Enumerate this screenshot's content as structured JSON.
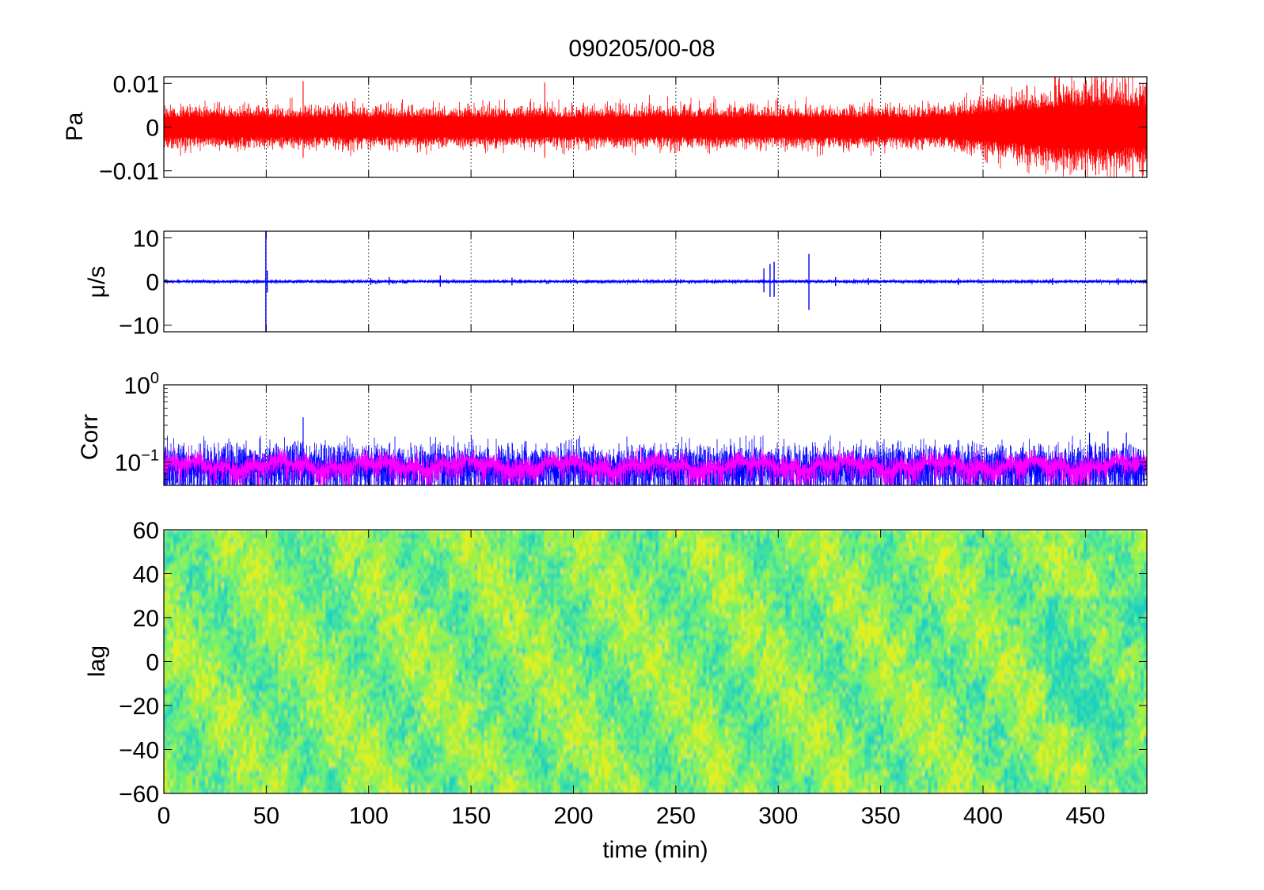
{
  "figure": {
    "title": "090205/00-08"
  },
  "chart_data": [
    {
      "type": "line",
      "panel": "pressure",
      "ylabel": "Pa",
      "xlim": [
        0,
        480
      ],
      "ylim": [
        -0.0115,
        0.0115
      ],
      "yticks": [
        -0.01,
        0,
        0.01
      ],
      "ytick_labels": [
        "−0.01",
        "0",
        "0.01"
      ],
      "xgrid_at": [
        50,
        100,
        150,
        200,
        250,
        300,
        350,
        400,
        450
      ],
      "color": "#ff0000",
      "baseline_amplitude": 0.004,
      "late_amplitude": 0.0085,
      "spikes": [
        {
          "x": 68,
          "min": -0.007,
          "max": 0.0105
        },
        {
          "x": 186,
          "min": -0.007,
          "max": 0.0102
        },
        {
          "x": 450,
          "min": -0.011,
          "max": 0.0115
        },
        {
          "x": 455,
          "min": -0.011,
          "max": 0.0115
        },
        {
          "x": 460,
          "min": -0.0095,
          "max": 0.0115
        }
      ]
    },
    {
      "type": "line",
      "panel": "velocity",
      "ylabel": "μ/s",
      "xlim": [
        0,
        480
      ],
      "ylim": [
        -11.5,
        11.5
      ],
      "yticks": [
        -10,
        0,
        10
      ],
      "ytick_labels": [
        "−10",
        "0",
        "10"
      ],
      "xgrid_at": [
        50,
        100,
        150,
        200,
        250,
        300,
        350,
        400,
        450
      ],
      "color": "#0000ff",
      "baseline_amplitude": 0.35,
      "spikes": [
        {
          "x": 49.8,
          "min": -11.5,
          "max": 11.5
        },
        {
          "x": 50.5,
          "min": -2.5,
          "max": 2.5
        },
        {
          "x": 101,
          "min": -0.8,
          "max": 0.8
        },
        {
          "x": 110,
          "min": -0.8,
          "max": 1.0
        },
        {
          "x": 135,
          "min": -1.2,
          "max": 1.4
        },
        {
          "x": 170,
          "min": -0.9,
          "max": 0.9
        },
        {
          "x": 293,
          "min": -2.5,
          "max": 3.0
        },
        {
          "x": 296,
          "min": -3.5,
          "max": 4.0
        },
        {
          "x": 298,
          "min": -3.5,
          "max": 4.5
        },
        {
          "x": 315,
          "min": -6.5,
          "max": 6.3
        },
        {
          "x": 328,
          "min": -1.0,
          "max": 1.0
        },
        {
          "x": 344,
          "min": -0.8,
          "max": 0.8
        },
        {
          "x": 388,
          "min": -0.8,
          "max": 0.8
        },
        {
          "x": 434,
          "min": -0.8,
          "max": 0.8
        },
        {
          "x": 466,
          "min": -0.8,
          "max": 0.8
        }
      ]
    },
    {
      "type": "line",
      "panel": "correlation",
      "ylabel": "Corr",
      "yscale": "log",
      "xlim": [
        0,
        480
      ],
      "ylim": [
        0.05,
        1
      ],
      "yticks": [
        0.1,
        1
      ],
      "ytick_labels": [
        {
          "base": "10",
          "exp": "−1"
        },
        {
          "base": "10",
          "exp": "0"
        }
      ],
      "xgrid_at": [
        50,
        100,
        150,
        200,
        250,
        300,
        350,
        400,
        450
      ],
      "series": [
        {
          "color": "#0000ff",
          "center": 0.085,
          "spread": 0.045
        },
        {
          "color": "#ff00ff",
          "center": 0.09,
          "spread": 0.018
        }
      ],
      "peaks": [
        {
          "x": 68,
          "value": 0.38
        },
        {
          "x": 452,
          "value": 0.24
        },
        {
          "x": 461,
          "value": 0.25
        },
        {
          "x": 470,
          "value": 0.24
        }
      ]
    },
    {
      "type": "heatmap",
      "panel": "lag",
      "ylabel": "lag",
      "xlabel": "time (min)",
      "xlim": [
        0,
        480
      ],
      "ylim": [
        -60,
        60
      ],
      "xticks": [
        0,
        50,
        100,
        150,
        200,
        250,
        300,
        350,
        400,
        450
      ],
      "yticks": [
        -60,
        -40,
        -20,
        0,
        20,
        40,
        60
      ],
      "ytick_labels": [
        "−60",
        "−40",
        "−20",
        "0",
        "20",
        "40",
        "60"
      ],
      "colors": [
        "#1ad0c0",
        "#40e0a0",
        "#70f070",
        "#a8f040",
        "#e0f020"
      ]
    }
  ]
}
